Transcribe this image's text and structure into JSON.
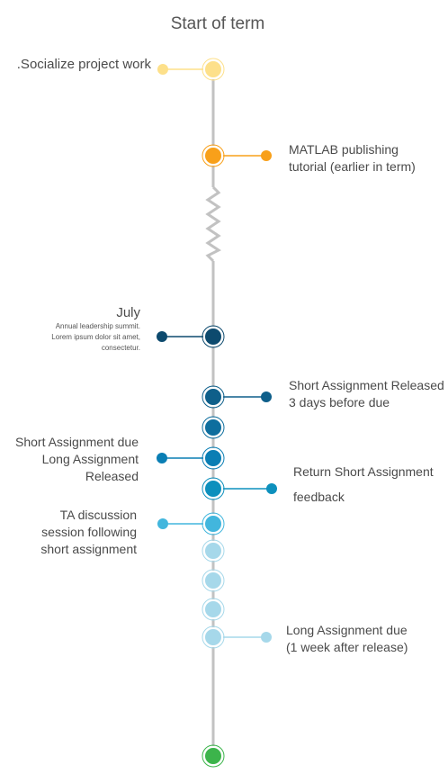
{
  "title": "Start of term",
  "colors": {
    "spine": "#c2c2c2",
    "yellow": "#fde08a",
    "orange": "#f8a01a",
    "dark_navy": "#0d4a6e",
    "navy": "#0e5f8a",
    "blue": "#0a7eb4",
    "mid_blue": "#0d90bd",
    "light_blue": "#42b6dd",
    "pale_blue": "#a6d8ea",
    "green": "#3cb44b"
  },
  "events": [
    {
      "label_lines": [
        ".Socialize project work"
      ]
    },
    {
      "label_lines": [
        "MATLAB publishing",
        "tutorial (earlier in term)"
      ]
    },
    {
      "month": "July",
      "desc_lines": [
        "Annual leadership summit.",
        "Lorem ipsum dolor sit amet,",
        "consectetur."
      ]
    },
    {
      "label_lines": [
        "Short Assignment Released",
        "3 days before due"
      ]
    },
    {
      "label_lines": [
        "Short Assignment due",
        "Long Assignment",
        "Released"
      ]
    },
    {
      "label_lines": [
        "Return Short Assignment",
        "feedback"
      ]
    },
    {
      "label_lines": [
        "TA discussion",
        "session following",
        "short assignment"
      ]
    },
    {
      "label_lines": [
        "Long Assignment due",
        "(1 week after release)"
      ]
    }
  ]
}
